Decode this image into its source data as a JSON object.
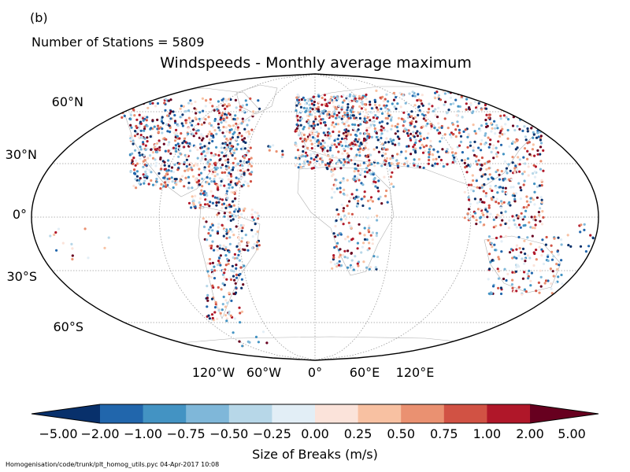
{
  "panel_label": "(b)",
  "station_count": "Number of Stations = 5809",
  "title": "Windspeeds - Monthly average maximum",
  "lat_labels": [
    "60°N",
    "30°N",
    "0°",
    "30°S",
    "60°S"
  ],
  "lon_labels": [
    "120°W",
    "60°W",
    "0°",
    "60°E",
    "120°E"
  ],
  "colorbar": {
    "label": "Size of Breaks (m/s)",
    "ticks": [
      "−5.00",
      "−2.00",
      "−1.00",
      "−0.75",
      "−0.50",
      "−0.25",
      "0.00",
      "0.25",
      "0.50",
      "0.75",
      "1.00",
      "2.00",
      "5.00"
    ],
    "colors": [
      "#08306b",
      "#2166ac",
      "#4393c3",
      "#7fb7d9",
      "#b7d7e8",
      "#e2eef6",
      "#fbe3da",
      "#f8c1a2",
      "#ea9171",
      "#d15244",
      "#b01729",
      "#67001f"
    ]
  },
  "footer": "Homogenisation/code/trunk/plt_homog_utils.pyc   04-Apr-2017 10:08"
}
